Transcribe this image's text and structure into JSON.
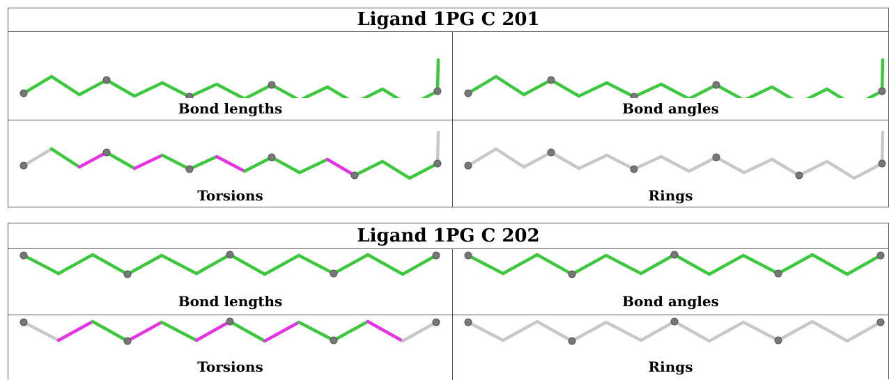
{
  "tables": [
    {
      "title": "Ligand 1PG C 201",
      "panels": [
        {
          "caption": "Bond lengths",
          "mode": "all-green"
        },
        {
          "caption": "Bond angles",
          "mode": "all-green"
        },
        {
          "caption": "Torsions",
          "mode": "torsion"
        },
        {
          "caption": "Rings",
          "mode": "all-gray"
        }
      ]
    },
    {
      "title": "Ligand 1PG C 202",
      "panels": [
        {
          "caption": "Bond lengths",
          "mode": "all-green"
        },
        {
          "caption": "Bond angles",
          "mode": "all-green"
        },
        {
          "caption": "Torsions",
          "mode": "torsion"
        },
        {
          "caption": "Rings",
          "mode": "all-gray"
        }
      ]
    }
  ],
  "colors": {
    "ok": "#3cc83c",
    "outlier": "#e632e6",
    "none": "#c8c8c8",
    "atom": "#777777"
  }
}
